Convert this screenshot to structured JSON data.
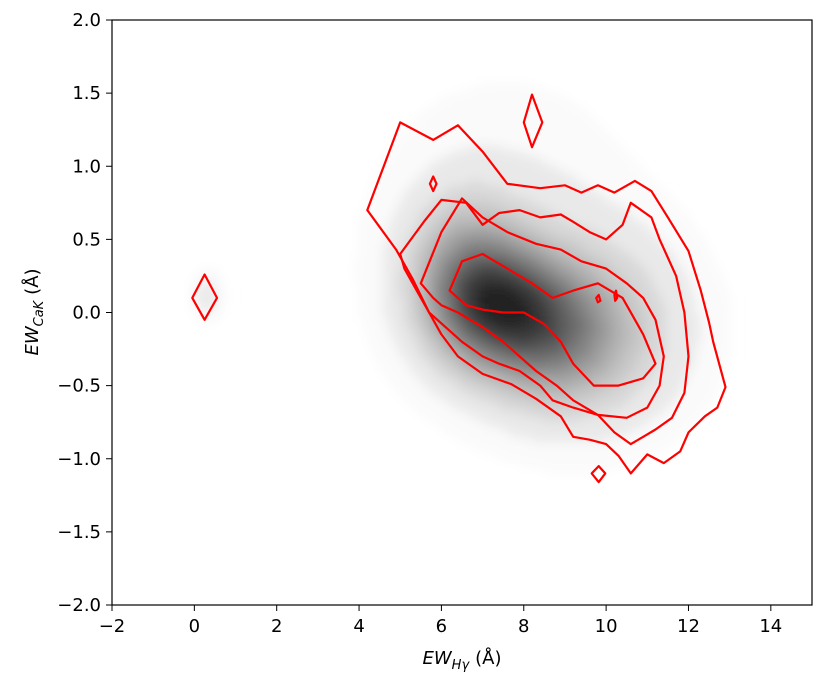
{
  "chart_data": {
    "type": "heatmap",
    "xlabel": {
      "main": "EW",
      "sub": "Hγ",
      "unit": "(Å)"
    },
    "ylabel": {
      "main": "EW",
      "sub": "CaK",
      "unit": "(Å)"
    },
    "xlim": [
      -2,
      15
    ],
    "ylim": [
      -2.0,
      2.0
    ],
    "x_ticks": [
      -2,
      0,
      2,
      4,
      6,
      8,
      10,
      12,
      14
    ],
    "x_tick_labels": [
      "−2",
      "0",
      "2",
      "4",
      "6",
      "8",
      "10",
      "12",
      "14"
    ],
    "y_ticks": [
      -2.0,
      -1.5,
      -1.0,
      -0.5,
      0.0,
      0.5,
      1.0,
      1.5,
      2.0
    ],
    "y_tick_labels": [
      "−2.0",
      "−1.5",
      "−1.0",
      "−0.5",
      "0.0",
      "0.5",
      "1.0",
      "1.5",
      "2.0"
    ],
    "grid": false,
    "colors": {
      "density": "#000000",
      "contour": "#ff0000"
    },
    "density_blobs": [
      {
        "x": 7.3,
        "y": 0.05,
        "sx": 1.0,
        "sy": 0.28,
        "w": 1.0
      },
      {
        "x": 8.6,
        "y": -0.15,
        "sx": 1.1,
        "sy": 0.3,
        "w": 0.7
      },
      {
        "x": 6.5,
        "y": 0.25,
        "sx": 0.9,
        "sy": 0.35,
        "w": 0.55
      },
      {
        "x": 9.8,
        "y": -0.15,
        "sx": 1.6,
        "sy": 0.45,
        "w": 0.35
      },
      {
        "x": 7.5,
        "y": 0.4,
        "sx": 2.2,
        "sy": 0.75,
        "w": 0.18
      },
      {
        "x": 0.25,
        "y": 0.1,
        "sx": 0.25,
        "sy": 0.12,
        "w": 0.2
      }
    ],
    "contours": [
      {
        "level": "outer",
        "points": [
          [
            4.2,
            0.7
          ],
          [
            5.0,
            1.3
          ],
          [
            5.8,
            1.18
          ],
          [
            6.4,
            1.28
          ],
          [
            7.0,
            1.1
          ],
          [
            7.6,
            0.88
          ],
          [
            8.4,
            0.85
          ],
          [
            9.0,
            0.87
          ],
          [
            9.4,
            0.82
          ],
          [
            9.8,
            0.87
          ],
          [
            10.2,
            0.82
          ],
          [
            10.7,
            0.9
          ],
          [
            11.1,
            0.83
          ],
          [
            11.5,
            0.65
          ],
          [
            12.0,
            0.42
          ],
          [
            12.3,
            0.15
          ],
          [
            12.5,
            -0.07
          ],
          [
            12.6,
            -0.2
          ],
          [
            12.9,
            -0.51
          ],
          [
            12.7,
            -0.65
          ],
          [
            12.4,
            -0.71
          ],
          [
            12.0,
            -0.82
          ],
          [
            11.8,
            -0.95
          ],
          [
            11.4,
            -1.03
          ],
          [
            11.0,
            -0.97
          ],
          [
            10.6,
            -1.1
          ],
          [
            10.3,
            -0.98
          ],
          [
            10.0,
            -0.9
          ],
          [
            9.6,
            -0.87
          ],
          [
            9.2,
            -0.85
          ],
          [
            8.9,
            -0.71
          ],
          [
            8.3,
            -0.59
          ],
          [
            7.7,
            -0.49
          ],
          [
            7.0,
            -0.42
          ],
          [
            6.4,
            -0.3
          ],
          [
            6.0,
            -0.15
          ],
          [
            5.7,
            0.0
          ],
          [
            5.3,
            0.23
          ],
          [
            4.9,
            0.43
          ],
          [
            4.2,
            0.7
          ]
        ]
      },
      {
        "level": "mid",
        "points": [
          [
            5.0,
            0.4
          ],
          [
            5.6,
            0.63
          ],
          [
            6.0,
            0.77
          ],
          [
            6.6,
            0.75
          ],
          [
            7.0,
            0.6
          ],
          [
            7.4,
            0.68
          ],
          [
            7.9,
            0.7
          ],
          [
            8.4,
            0.65
          ],
          [
            8.9,
            0.67
          ],
          [
            9.2,
            0.62
          ],
          [
            9.6,
            0.55
          ],
          [
            10.0,
            0.5
          ],
          [
            10.4,
            0.6
          ],
          [
            10.6,
            0.75
          ],
          [
            11.1,
            0.65
          ],
          [
            11.3,
            0.5
          ],
          [
            11.7,
            0.25
          ],
          [
            11.9,
            0.0
          ],
          [
            12.0,
            -0.3
          ],
          [
            11.9,
            -0.55
          ],
          [
            11.6,
            -0.72
          ],
          [
            11.2,
            -0.8
          ],
          [
            10.9,
            -0.85
          ],
          [
            10.6,
            -0.9
          ],
          [
            10.2,
            -0.82
          ],
          [
            9.8,
            -0.7
          ],
          [
            9.2,
            -0.65
          ],
          [
            8.7,
            -0.6
          ],
          [
            8.4,
            -0.5
          ],
          [
            7.9,
            -0.4
          ],
          [
            7.4,
            -0.35
          ],
          [
            7.0,
            -0.3
          ],
          [
            6.5,
            -0.2
          ],
          [
            6.1,
            -0.1
          ],
          [
            5.7,
            0.0
          ],
          [
            5.4,
            0.15
          ],
          [
            5.1,
            0.3
          ],
          [
            5.0,
            0.4
          ]
        ]
      },
      {
        "level": "inner",
        "points": [
          [
            5.5,
            0.2
          ],
          [
            6.0,
            0.55
          ],
          [
            6.5,
            0.78
          ],
          [
            7.0,
            0.65
          ],
          [
            7.6,
            0.55
          ],
          [
            8.3,
            0.47
          ],
          [
            8.9,
            0.43
          ],
          [
            9.4,
            0.35
          ],
          [
            10.0,
            0.3
          ],
          [
            10.5,
            0.2
          ],
          [
            10.9,
            0.1
          ],
          [
            11.2,
            -0.05
          ],
          [
            11.4,
            -0.3
          ],
          [
            11.3,
            -0.5
          ],
          [
            11.0,
            -0.65
          ],
          [
            10.5,
            -0.72
          ],
          [
            9.8,
            -0.7
          ],
          [
            9.2,
            -0.6
          ],
          [
            8.8,
            -0.5
          ],
          [
            8.3,
            -0.4
          ],
          [
            7.9,
            -0.3
          ],
          [
            7.5,
            -0.2
          ],
          [
            7.0,
            -0.1
          ],
          [
            6.7,
            -0.05
          ],
          [
            6.4,
            0.0
          ],
          [
            6.0,
            0.05
          ],
          [
            5.8,
            0.1
          ],
          [
            5.5,
            0.2
          ]
        ]
      },
      {
        "level": "core",
        "points": [
          [
            6.2,
            0.15
          ],
          [
            6.5,
            0.35
          ],
          [
            7.0,
            0.4
          ],
          [
            7.6,
            0.3
          ],
          [
            8.2,
            0.2
          ],
          [
            8.7,
            0.1
          ],
          [
            9.2,
            0.15
          ],
          [
            9.8,
            0.2
          ],
          [
            10.4,
            0.1
          ],
          [
            10.9,
            -0.15
          ],
          [
            11.2,
            -0.35
          ],
          [
            10.9,
            -0.45
          ],
          [
            10.3,
            -0.5
          ],
          [
            9.7,
            -0.5
          ],
          [
            9.2,
            -0.35
          ],
          [
            8.9,
            -0.2
          ],
          [
            8.5,
            -0.08
          ],
          [
            8.0,
            0.0
          ],
          [
            7.5,
            0.0
          ],
          [
            7.0,
            0.02
          ],
          [
            6.6,
            0.05
          ],
          [
            6.2,
            0.15
          ]
        ]
      },
      {
        "level": "island",
        "points": [
          [
            -0.05,
            0.1
          ],
          [
            0.25,
            0.26
          ],
          [
            0.55,
            0.1
          ],
          [
            0.25,
            -0.05
          ],
          [
            -0.05,
            0.1
          ]
        ]
      },
      {
        "level": "island",
        "points": [
          [
            8.0,
            1.3
          ],
          [
            8.2,
            1.49
          ],
          [
            8.45,
            1.3
          ],
          [
            8.2,
            1.13
          ],
          [
            8.0,
            1.3
          ]
        ]
      },
      {
        "level": "island",
        "points": [
          [
            5.72,
            0.88
          ],
          [
            5.8,
            0.93
          ],
          [
            5.88,
            0.88
          ],
          [
            5.8,
            0.83
          ],
          [
            5.72,
            0.88
          ]
        ]
      },
      {
        "level": "island",
        "points": [
          [
            9.65,
            -1.1
          ],
          [
            9.82,
            -1.05
          ],
          [
            9.98,
            -1.1
          ],
          [
            9.82,
            -1.16
          ],
          [
            9.65,
            -1.1
          ]
        ]
      },
      {
        "level": "island",
        "points": [
          [
            9.76,
            0.1
          ],
          [
            9.82,
            0.12
          ],
          [
            9.86,
            0.08
          ],
          [
            9.8,
            0.07
          ],
          [
            9.76,
            0.1
          ]
        ]
      },
      {
        "level": "island",
        "points": [
          [
            10.2,
            0.12
          ],
          [
            10.24,
            0.15
          ],
          [
            10.27,
            0.1
          ],
          [
            10.22,
            0.08
          ],
          [
            10.2,
            0.12
          ]
        ]
      }
    ]
  }
}
